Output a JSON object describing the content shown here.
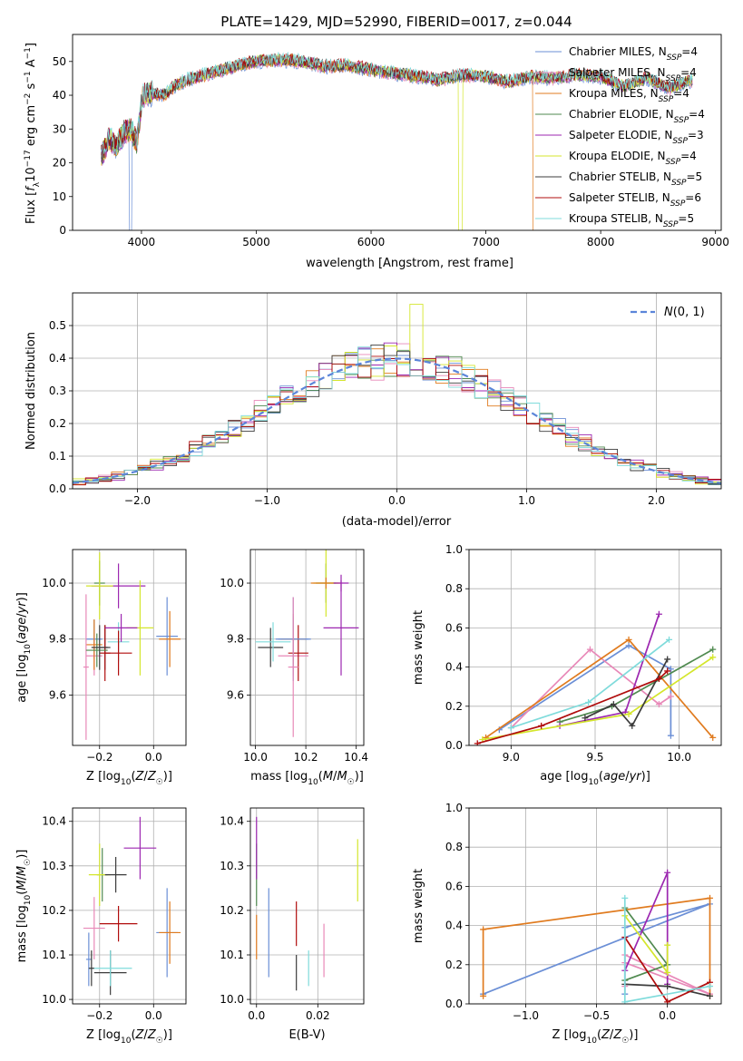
{
  "figure": {
    "title": "PLATE=1429, MJD=52990, FIBERID=0017, z=0.044"
  },
  "chart_data": [
    {
      "id": "spectrum",
      "type": "line",
      "xlabel": "wavelength [Angstrom, rest frame]",
      "ylabel": "Flux [f_λ10^-17 erg cm^-2 s^-1 A^-1]",
      "xlim": [
        3400,
        9050
      ],
      "ylim": [
        0,
        58
      ],
      "xticks": [
        4000,
        5000,
        6000,
        7000,
        8000,
        9000
      ],
      "yticks": [
        0,
        10,
        20,
        30,
        40,
        50
      ],
      "grid": false,
      "legend_position": "top-right",
      "continuum": [
        [
          3650,
          22
        ],
        [
          3720,
          27
        ],
        [
          3780,
          25
        ],
        [
          3850,
          29
        ],
        [
          3905,
          30
        ],
        [
          3960,
          26
        ],
        [
          4010,
          40
        ],
        [
          4100,
          40.5
        ],
        [
          4200,
          40
        ],
        [
          4300,
          43
        ],
        [
          4400,
          44.5
        ],
        [
          4550,
          46
        ],
        [
          4700,
          47.5
        ],
        [
          4860,
          49
        ],
        [
          5000,
          50
        ],
        [
          5200,
          50.5
        ],
        [
          5400,
          50
        ],
        [
          5600,
          48.5
        ],
        [
          5800,
          48.8
        ],
        [
          6000,
          47.5
        ],
        [
          6200,
          46.5
        ],
        [
          6400,
          45.5
        ],
        [
          6600,
          44.5
        ],
        [
          6800,
          46
        ],
        [
          7000,
          45.5
        ],
        [
          7200,
          44
        ],
        [
          7400,
          45.5
        ],
        [
          7600,
          45
        ],
        [
          7800,
          46
        ],
        [
          8000,
          45.5
        ],
        [
          8200,
          42.5
        ],
        [
          8400,
          45
        ],
        [
          8600,
          42
        ],
        [
          8800,
          44.5
        ]
      ],
      "series": [
        {
          "name": "Chabrier MILES, N_SSP=4",
          "color": "#6b8fd6"
        },
        {
          "name": "Salpeter MILES, N_SSP=4",
          "color": "#e888b8"
        },
        {
          "name": "Kroupa MILES, N_SSP=4",
          "color": "#e07b1f"
        },
        {
          "name": "Chabrier ELODIE, N_SSP=4",
          "color": "#4f8a4f"
        },
        {
          "name": "Salpeter ELODIE, N_SSP=3",
          "color": "#9c27b0"
        },
        {
          "name": "Kroupa ELODIE, N_SSP=4",
          "color": "#d4e62c"
        },
        {
          "name": "Chabrier STELIB, N_SSP=5",
          "color": "#3c3c3c"
        },
        {
          "name": "Salpeter STELIB, N_SSP=6",
          "color": "#b00c0c"
        },
        {
          "name": "Kroupa STELIB, N_SSP=5",
          "color": "#7fdbdb"
        }
      ]
    },
    {
      "id": "residual-hist",
      "type": "line",
      "xlabel": "(data-model)/error",
      "ylabel": "Normed distribution",
      "xlim": [
        -2.5,
        2.5
      ],
      "ylim": [
        0,
        0.6
      ],
      "xticks": [
        -2,
        -1,
        0,
        1,
        2
      ],
      "yticks": [
        0.0,
        0.1,
        0.2,
        0.3,
        0.4,
        0.5
      ],
      "grid": true,
      "legend_position": "top-right",
      "reference_curve": {
        "name": "N(0,1)",
        "mean": 0,
        "sigma": 1,
        "color": "#5b85d9",
        "style": "dashed"
      },
      "bin_width": 0.1,
      "bins_from": -2.5,
      "seeds": [
        1,
        2,
        3,
        4,
        5,
        6,
        7,
        8,
        9
      ]
    },
    {
      "id": "age-vs-Z",
      "type": "scatter",
      "xlabel": "Z [log10(Z/Z☉)]",
      "ylabel": "age  [log10(age/yr)]",
      "xlim": [
        -0.3,
        0.12
      ],
      "ylim": [
        9.42,
        10.12
      ],
      "xticks": [
        -0.2,
        0.0
      ],
      "yticks": [
        9.6,
        9.8,
        10.0
      ],
      "grid": true,
      "points": [
        {
          "x": -0.22,
          "y": 9.8,
          "ex": 0.03,
          "ey": 0.07,
          "color": 0
        },
        {
          "x": -0.22,
          "y": 9.74,
          "ex": 0.03,
          "ey": 0.07,
          "color": 1
        },
        {
          "x": -0.22,
          "y": 9.78,
          "ex": 0.03,
          "ey": 0.09,
          "color": 2
        },
        {
          "x": -0.2,
          "y": 10.0,
          "ex": 0.02,
          "ey": 0.08,
          "color": 3
        },
        {
          "x": -0.13,
          "y": 9.99,
          "ex": 0.1,
          "ey": 0.08,
          "color": 4
        },
        {
          "x": -0.05,
          "y": 9.84,
          "ex": 0.05,
          "ey": 0.17,
          "color": 5
        },
        {
          "x": -0.18,
          "y": 9.77,
          "ex": 0.02,
          "ey": 0.08,
          "color": 6
        },
        {
          "x": -0.18,
          "y": 9.75,
          "ex": 0.02,
          "ey": 0.1,
          "color": 7
        },
        {
          "x": -0.13,
          "y": 9.79,
          "ex": 0.04,
          "ey": 0.07,
          "color": 8
        },
        {
          "x": 0.05,
          "y": 9.81,
          "ex": 0.04,
          "ey": 0.14,
          "color": 0
        },
        {
          "x": -0.25,
          "y": 9.7,
          "ex": 0.01,
          "ey": 0.26,
          "color": 1
        },
        {
          "x": 0.06,
          "y": 9.8,
          "ex": 0.04,
          "ey": 0.1,
          "color": 2
        },
        {
          "x": -0.12,
          "y": 9.84,
          "ex": 0.06,
          "ey": 0.05,
          "color": 4
        },
        {
          "x": -0.13,
          "y": 9.75,
          "ex": 0.05,
          "ey": 0.08,
          "color": 7
        },
        {
          "x": -0.2,
          "y": 9.99,
          "ex": 0.05,
          "ey": 0.12,
          "color": 5
        },
        {
          "x": -0.21,
          "y": 9.76,
          "ex": 0.04,
          "ey": 0.06,
          "color": 3
        },
        {
          "x": -0.2,
          "y": 9.77,
          "ex": 0.03,
          "ey": 0.08,
          "color": 6
        }
      ]
    },
    {
      "id": "age-vs-mass",
      "type": "scatter",
      "xlabel": "mass [log10(M/M☉)]",
      "ylabel": "",
      "xlim": [
        9.98,
        10.43
      ],
      "ylim": [
        9.42,
        10.12
      ],
      "xticks": [
        10.0,
        10.2,
        10.4
      ],
      "yticks": [
        9.6,
        9.8,
        10.0
      ],
      "grid": true,
      "points": [
        {
          "x": 10.15,
          "y": 9.8,
          "ex": 0.06,
          "ey": 0.08,
          "color": 0
        },
        {
          "x": 10.15,
          "y": 9.74,
          "ex": 0.06,
          "ey": 0.07,
          "color": 1
        },
        {
          "x": 10.15,
          "y": 9.8,
          "ex": 0.05,
          "ey": 0.09,
          "color": 2
        },
        {
          "x": 10.28,
          "y": 10.0,
          "ex": 0.04,
          "ey": 0.07,
          "color": 3
        },
        {
          "x": 10.34,
          "y": 9.84,
          "ex": 0.07,
          "ey": 0.17,
          "color": 4
        },
        {
          "x": 10.28,
          "y": 10.0,
          "ex": 0.05,
          "ey": 0.12,
          "color": 5
        },
        {
          "x": 10.06,
          "y": 9.77,
          "ex": 0.05,
          "ey": 0.07,
          "color": 6
        },
        {
          "x": 10.17,
          "y": 9.75,
          "ex": 0.04,
          "ey": 0.1,
          "color": 7
        },
        {
          "x": 10.07,
          "y": 9.79,
          "ex": 0.07,
          "ey": 0.07,
          "color": 8
        },
        {
          "x": 10.15,
          "y": 9.8,
          "ex": 0.07,
          "ey": 0.15,
          "color": 0
        },
        {
          "x": 10.15,
          "y": 9.7,
          "ex": 0.02,
          "ey": 0.25,
          "color": 1
        },
        {
          "x": 10.28,
          "y": 10.0,
          "ex": 0.06,
          "ey": 0.02,
          "color": 2
        },
        {
          "x": 10.34,
          "y": 10.0,
          "ex": 0.03,
          "ey": 0.03,
          "color": 4
        }
      ]
    },
    {
      "id": "mass-weight-vs-age",
      "type": "line",
      "xlabel": "age  [log10(age/yr)]",
      "ylabel": "mass weight",
      "xlim": [
        8.75,
        10.25
      ],
      "ylim": [
        0,
        1
      ],
      "xticks": [
        9.0,
        9.5,
        10.0
      ],
      "yticks": [
        0.0,
        0.2,
        0.4,
        0.6,
        0.8,
        1.0
      ],
      "grid": true,
      "series": [
        {
          "color": 0,
          "x": [
            8.93,
            9.7,
            9.95,
            9.95
          ],
          "y": [
            0.08,
            0.51,
            0.39,
            0.05
          ]
        },
        {
          "color": 1,
          "x": [
            9.0,
            9.47,
            9.88,
            9.95
          ],
          "y": [
            0.09,
            0.49,
            0.21,
            0.25
          ]
        },
        {
          "color": 2,
          "x": [
            8.85,
            9.7,
            10.2
          ],
          "y": [
            0.04,
            0.54,
            0.04
          ]
        },
        {
          "color": 3,
          "x": [
            9.29,
            9.6,
            10.2
          ],
          "y": [
            0.12,
            0.2,
            0.49
          ]
        },
        {
          "color": 4,
          "x": [
            9.29,
            9.68,
            9.88
          ],
          "y": [
            0.1,
            0.17,
            0.67
          ]
        },
        {
          "color": 5,
          "x": [
            8.83,
            9.7,
            10.2
          ],
          "y": [
            0.03,
            0.16,
            0.45
          ]
        },
        {
          "color": 6,
          "x": [
            9.44,
            9.61,
            9.72,
            9.93
          ],
          "y": [
            0.14,
            0.21,
            0.1,
            0.44
          ]
        },
        {
          "color": 7,
          "x": [
            8.8,
            9.18,
            9.88,
            9.93
          ],
          "y": [
            0.01,
            0.1,
            0.34,
            0.38
          ]
        },
        {
          "color": 8,
          "x": [
            9.0,
            9.46,
            9.94
          ],
          "y": [
            0.09,
            0.22,
            0.54
          ]
        }
      ]
    },
    {
      "id": "mass-vs-Z",
      "type": "scatter",
      "xlabel": "Z [log10(Z/Z☉)]",
      "ylabel": "mass [log10(M/M☉)]",
      "xlim": [
        -0.3,
        0.12
      ],
      "ylim": [
        9.99,
        10.43
      ],
      "xticks": [
        -0.2,
        0.0
      ],
      "yticks": [
        10.0,
        10.1,
        10.2,
        10.3,
        10.4
      ],
      "grid": true,
      "points": [
        {
          "x": 0.05,
          "y": 10.15,
          "ex": 0.04,
          "ey": 0.1,
          "color": 0
        },
        {
          "x": -0.22,
          "y": 10.16,
          "ex": 0.04,
          "ey": 0.07,
          "color": 1
        },
        {
          "x": 0.06,
          "y": 10.15,
          "ex": 0.04,
          "ey": 0.07,
          "color": 2
        },
        {
          "x": -0.19,
          "y": 10.28,
          "ex": 0.02,
          "ey": 0.06,
          "color": 3
        },
        {
          "x": -0.05,
          "y": 10.34,
          "ex": 0.06,
          "ey": 0.07,
          "color": 4
        },
        {
          "x": -0.2,
          "y": 10.28,
          "ex": 0.04,
          "ey": 0.07,
          "color": 5
        },
        {
          "x": -0.16,
          "y": 10.06,
          "ex": 0.06,
          "ey": 0.05,
          "color": 6
        },
        {
          "x": -0.13,
          "y": 10.17,
          "ex": 0.07,
          "ey": 0.04,
          "color": 7
        },
        {
          "x": -0.16,
          "y": 10.07,
          "ex": 0.08,
          "ey": 0.04,
          "color": 8
        },
        {
          "x": -0.14,
          "y": 10.28,
          "ex": 0.04,
          "ey": 0.04,
          "color": 6
        },
        {
          "x": -0.24,
          "y": 10.09,
          "ex": 0.01,
          "ey": 0.06,
          "color": 0
        },
        {
          "x": -0.23,
          "y": 10.07,
          "ex": 0.01,
          "ey": 0.04,
          "color": 6
        }
      ]
    },
    {
      "id": "mass-vs-EBV",
      "type": "scatter",
      "xlabel": "E(B-V)",
      "ylabel": "",
      "xlim": [
        -0.002,
        0.035
      ],
      "ylim": [
        9.99,
        10.43
      ],
      "xticks": [
        0.0,
        0.02
      ],
      "yticks": [
        10.0,
        10.1,
        10.2,
        10.3,
        10.4
      ],
      "grid": true,
      "points": [
        {
          "x": 0.0,
          "y": 10.28,
          "ex": 0,
          "ey": 0.07,
          "color": 3
        },
        {
          "x": 0.0,
          "y": 10.34,
          "ex": 0,
          "ey": 0.07,
          "color": 4
        },
        {
          "x": 0.0,
          "y": 10.14,
          "ex": 0,
          "ey": 0.05,
          "color": 2
        },
        {
          "x": 0.004,
          "y": 10.15,
          "ex": 0,
          "ey": 0.1,
          "color": 0
        },
        {
          "x": 0.013,
          "y": 10.17,
          "ex": 0,
          "ey": 0.05,
          "color": 7
        },
        {
          "x": 0.013,
          "y": 10.06,
          "ex": 0,
          "ey": 0.04,
          "color": 6
        },
        {
          "x": 0.017,
          "y": 10.07,
          "ex": 0,
          "ey": 0.04,
          "color": 8
        },
        {
          "x": 0.022,
          "y": 10.11,
          "ex": 0,
          "ey": 0.06,
          "color": 1
        },
        {
          "x": 0.033,
          "y": 10.29,
          "ex": 0,
          "ey": 0.07,
          "color": 5
        }
      ]
    },
    {
      "id": "mass-weight-vs-Z",
      "type": "line",
      "xlabel": "Z [log10(Z/Z☉)]",
      "ylabel": "mass weight",
      "xlim": [
        -1.4,
        0.38
      ],
      "ylim": [
        0,
        1
      ],
      "xticks": [
        -1.0,
        -0.5,
        0.0
      ],
      "yticks": [
        0.0,
        0.2,
        0.4,
        0.6,
        0.8,
        1.0
      ],
      "grid": true,
      "series": [
        {
          "color": 0,
          "x": [
            -1.3,
            0.3,
            -0.3,
            -0.3
          ],
          "y": [
            0.05,
            0.51,
            0.39,
            0.05
          ]
        },
        {
          "color": 1,
          "x": [
            -0.3,
            0.3,
            -0.3,
            -0.3
          ],
          "y": [
            0.21,
            0.05,
            0.25,
            0.09
          ]
        },
        {
          "color": 2,
          "x": [
            -1.3,
            -1.3,
            0.3,
            0.3
          ],
          "y": [
            0.04,
            0.38,
            0.54,
            0.04
          ]
        },
        {
          "color": 3,
          "x": [
            -0.3,
            0.0,
            -0.3
          ],
          "y": [
            0.49,
            0.2,
            0.12
          ]
        },
        {
          "color": 4,
          "x": [
            -0.3,
            0.0,
            0.0
          ],
          "y": [
            0.17,
            0.67,
            0.1
          ]
        },
        {
          "color": 5,
          "x": [
            -0.3,
            0.0,
            0.0
          ],
          "y": [
            0.45,
            0.16,
            0.3
          ]
        },
        {
          "color": 6,
          "x": [
            -0.3,
            0.0,
            0.3
          ],
          "y": [
            0.1,
            0.09,
            0.04
          ]
        },
        {
          "color": 7,
          "x": [
            -0.3,
            0.0,
            0.3
          ],
          "y": [
            0.34,
            0.01,
            0.11
          ]
        },
        {
          "color": 8,
          "x": [
            -0.3,
            -0.3,
            0.3
          ],
          "y": [
            0.54,
            0.01,
            0.09
          ]
        }
      ]
    }
  ]
}
